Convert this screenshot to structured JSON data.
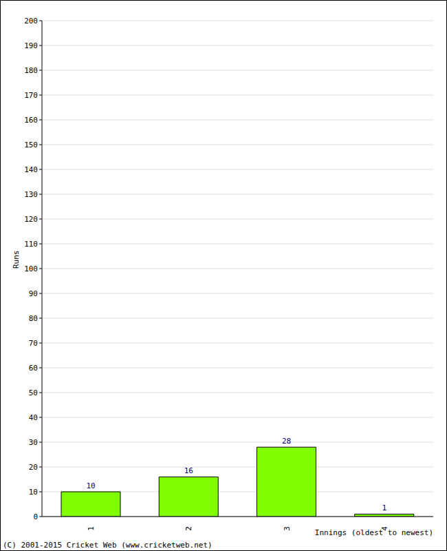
{
  "chart_data": {
    "type": "bar",
    "categories": [
      "1",
      "2",
      "3",
      "4"
    ],
    "values": [
      10,
      16,
      28,
      1
    ],
    "color": "#80ff00",
    "ylim": [
      0,
      200
    ],
    "yticks": [
      0,
      10,
      20,
      30,
      40,
      50,
      60,
      70,
      80,
      90,
      100,
      110,
      120,
      130,
      140,
      150,
      160,
      170,
      180,
      190,
      200
    ],
    "grid": true,
    "data_labels": true,
    "x_label": "Innings (oldest to newest)",
    "y_label": "Runs",
    "annotations": [
      "(C) 2001-2015 Cricket Web (www.cricketweb.net)"
    ]
  }
}
